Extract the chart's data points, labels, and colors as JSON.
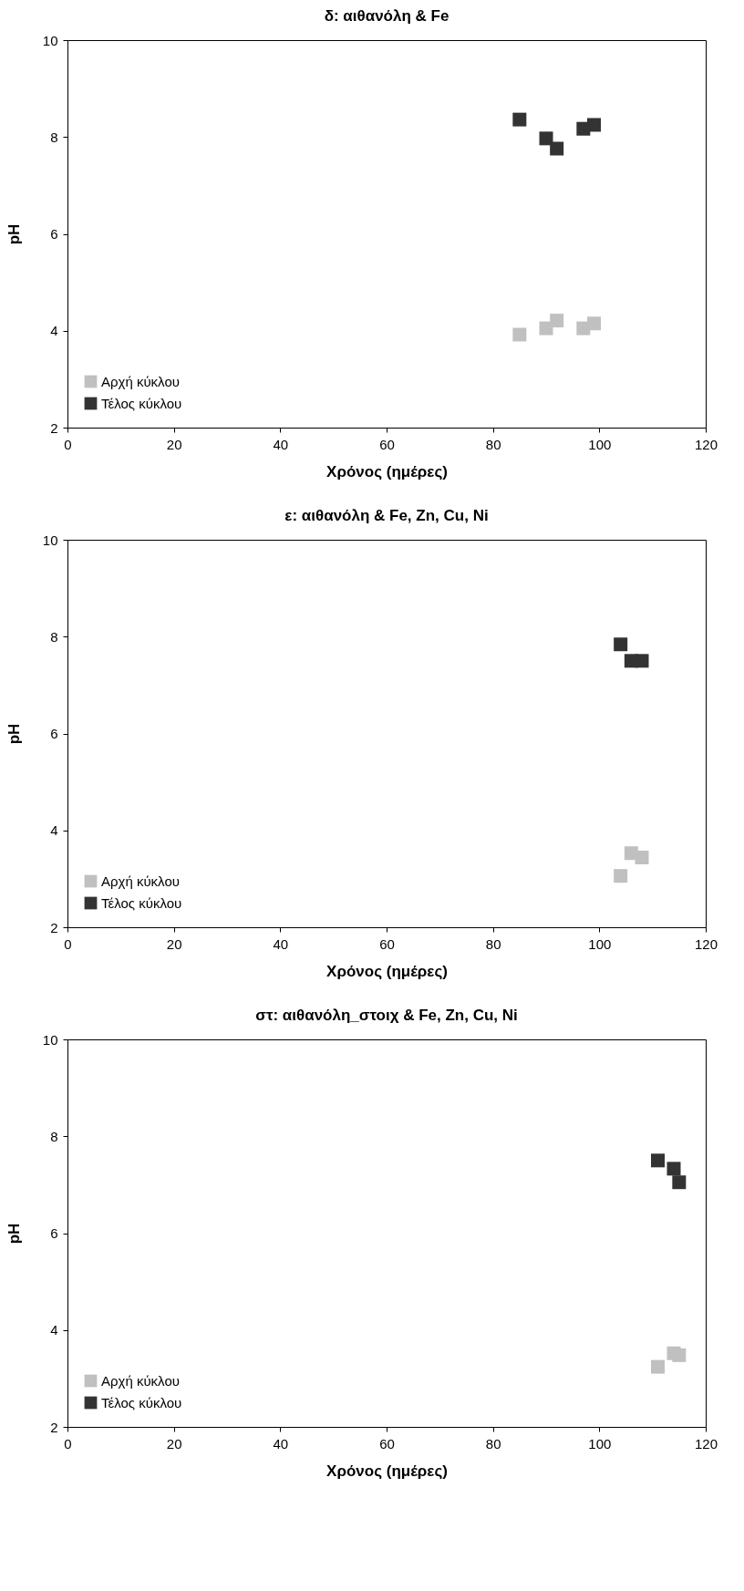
{
  "chart_data": [
    {
      "type": "scatter",
      "title": "δ: αιθανόλη & Fe",
      "xlabel": "Χρόνος (ημέρες)",
      "ylabel": "pH",
      "xlim": [
        0,
        120
      ],
      "xticks": [
        0,
        20,
        40,
        60,
        80,
        100,
        120
      ],
      "ylim": [
        2,
        10
      ],
      "yticks": [
        2,
        4,
        6,
        8,
        10
      ],
      "grid": false,
      "legend": "bottom left",
      "marker": "square",
      "series": [
        {
          "name": "Αρχή κύκλου",
          "color": "#c0c0c0",
          "x": [
            85,
            90,
            92,
            97,
            99
          ],
          "values": [
            3.92,
            4.05,
            4.21,
            4.05,
            4.15
          ]
        },
        {
          "name": "Τέλος κύκλου",
          "color": "#333333",
          "x": [
            85,
            90,
            92,
            97,
            99
          ],
          "values": [
            8.36,
            7.97,
            7.76,
            8.17,
            8.25
          ]
        }
      ]
    },
    {
      "type": "scatter",
      "title": "ε: αιθανόλη & Fe, Zn, Cu, Ni",
      "xlabel": "Χρόνος (ημέρες)",
      "ylabel": "pH",
      "xlim": [
        0,
        120
      ],
      "xticks": [
        0,
        20,
        40,
        60,
        80,
        100,
        120
      ],
      "ylim": [
        2,
        10
      ],
      "yticks": [
        2,
        4,
        6,
        8,
        10
      ],
      "grid": false,
      "legend": "bottom left",
      "marker": "square",
      "series": [
        {
          "name": "Αρχή κύκλου",
          "color": "#c0c0c0",
          "x": [
            104,
            106,
            108
          ],
          "values": [
            3.06,
            3.53,
            3.44
          ]
        },
        {
          "name": "Τέλος κύκλου",
          "color": "#333333",
          "x": [
            104,
            106,
            108
          ],
          "values": [
            7.84,
            7.5,
            7.5
          ]
        }
      ]
    },
    {
      "type": "scatter",
      "title": "στ: αιθανόλη_στοιχ & Fe, Zn, Cu, Ni",
      "xlabel": "Χρόνος (ημέρες)",
      "ylabel": "pH",
      "xlim": [
        0,
        120
      ],
      "xticks": [
        0,
        20,
        40,
        60,
        80,
        100,
        120
      ],
      "ylim": [
        2,
        10
      ],
      "yticks": [
        2,
        4,
        6,
        8,
        10
      ],
      "grid": false,
      "legend": "bottom left",
      "marker": "square",
      "series": [
        {
          "name": "Αρχή κύκλου",
          "color": "#c0c0c0",
          "x": [
            111,
            114,
            115
          ],
          "values": [
            3.24,
            3.52,
            3.48
          ]
        },
        {
          "name": "Τέλος κύκλου",
          "color": "#333333",
          "x": [
            111,
            114,
            115
          ],
          "values": [
            7.5,
            7.33,
            7.05
          ]
        }
      ]
    }
  ]
}
